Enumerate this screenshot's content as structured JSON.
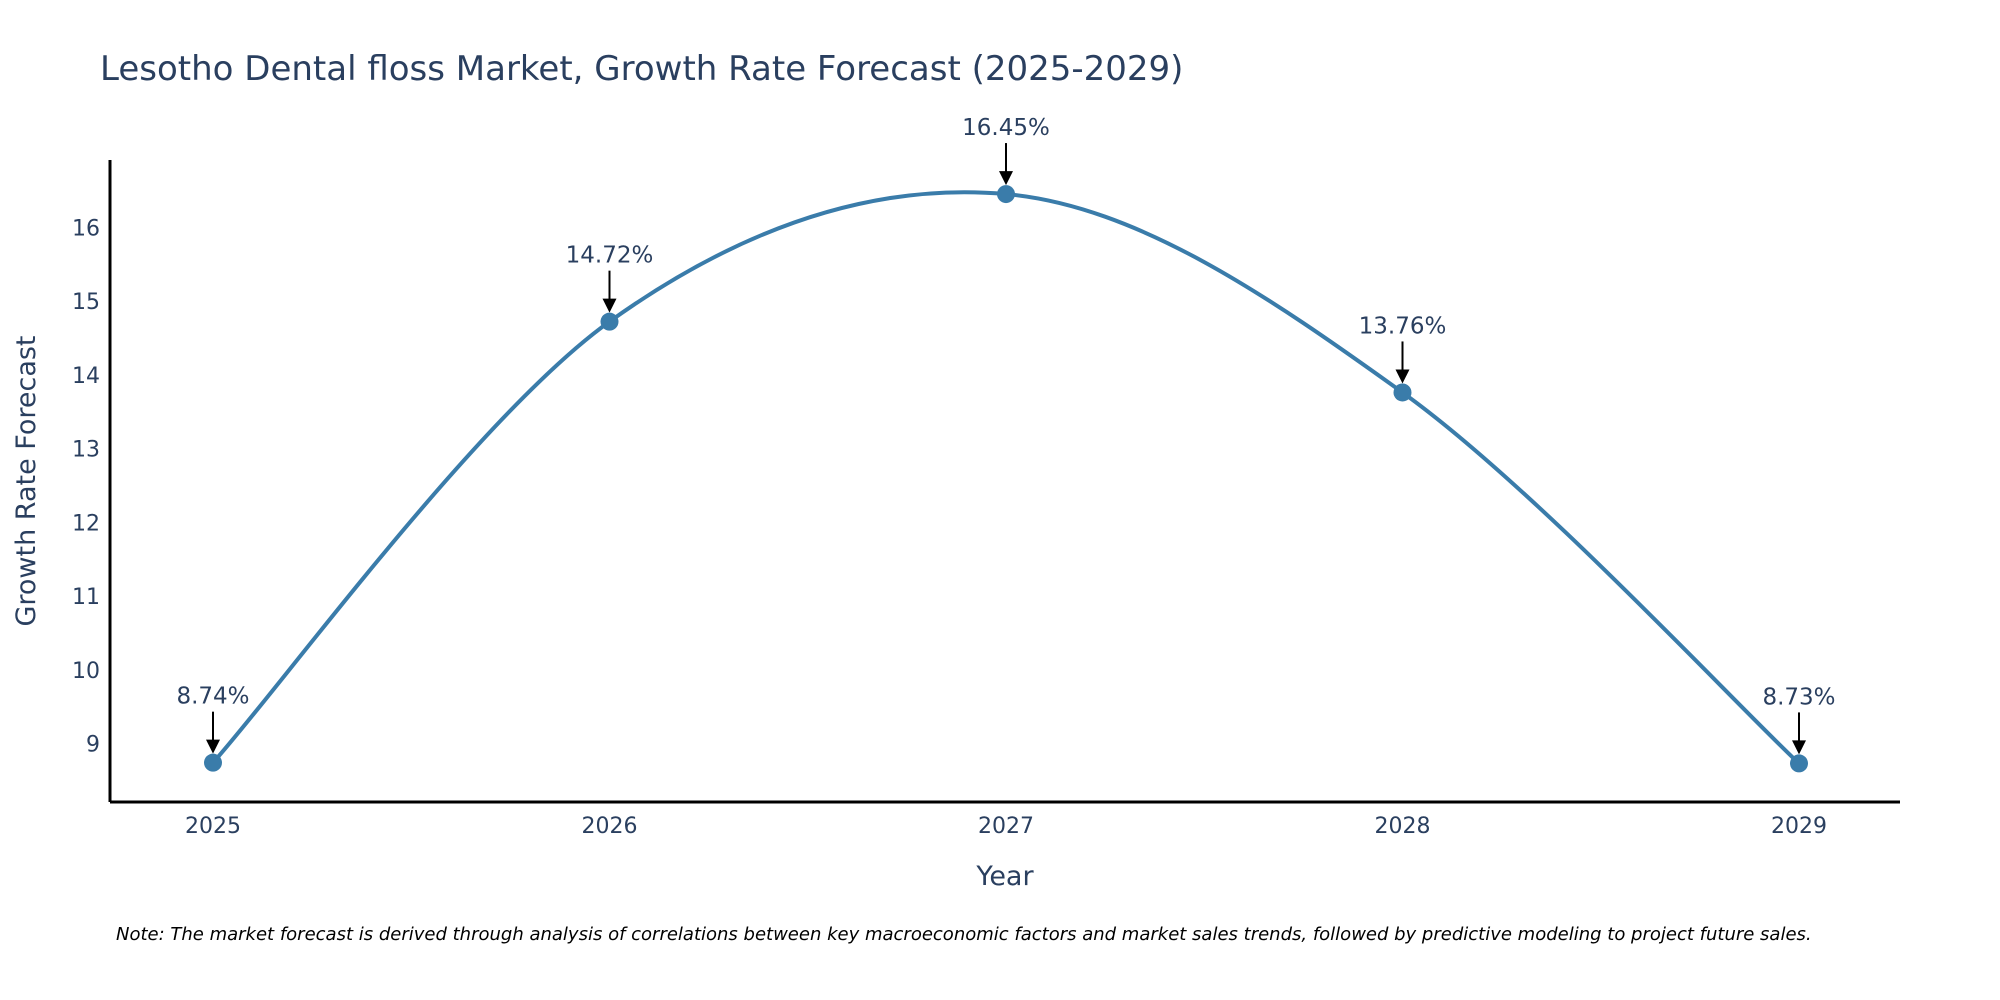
{
  "chart_data": {
    "type": "line",
    "title": "Lesotho Dental floss Market, Growth Rate Forecast (2025-2029)",
    "xlabel": "Year",
    "ylabel": "Growth Rate Forecast",
    "categories": [
      "2025",
      "2026",
      "2027",
      "2028",
      "2029"
    ],
    "series": [
      {
        "name": "Growth Rate Forecast",
        "values": [
          8.74,
          14.72,
          16.45,
          13.76,
          8.73
        ],
        "labels": [
          "8.74%",
          "14.72%",
          "16.45%",
          "13.76%",
          "8.73%"
        ],
        "color": "#3a7caa"
      }
    ],
    "yticks": [
      9,
      10,
      11,
      12,
      13,
      14,
      15,
      16
    ],
    "ylim": [
      8.2,
      16.9
    ],
    "grid": false,
    "line_shape": "spline",
    "note": "Note: The market forecast is derived through analysis of correlations between key macroeconomic factors and market sales trends, followed by predictive modeling to project future sales."
  }
}
